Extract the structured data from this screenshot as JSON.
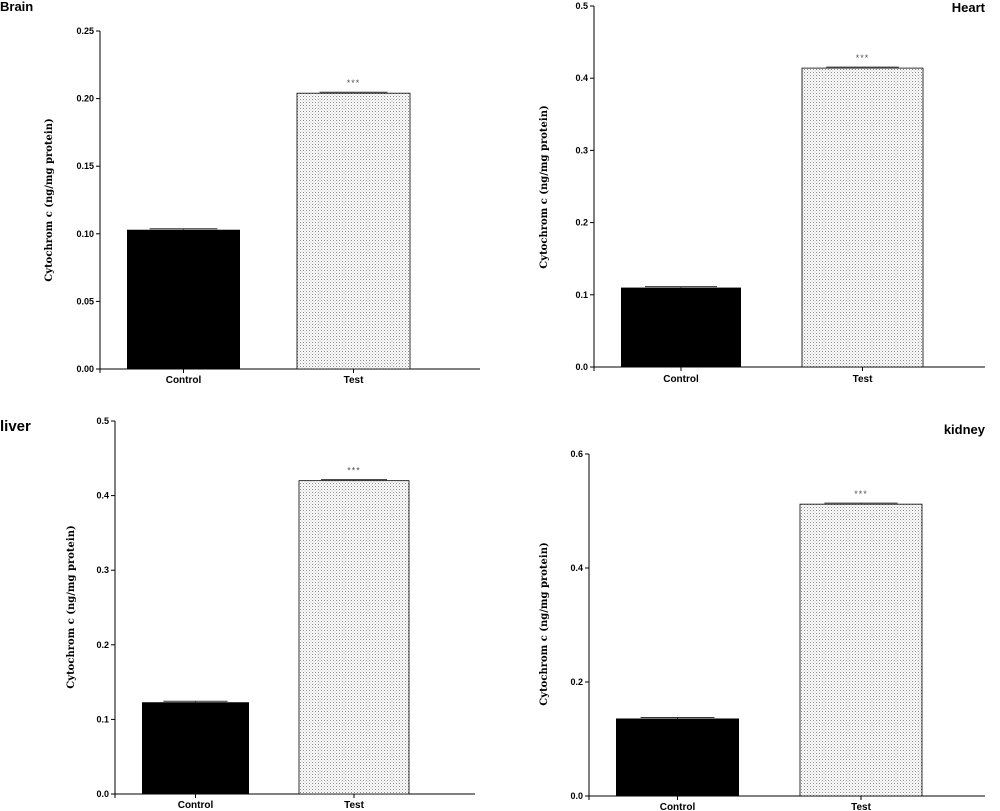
{
  "chart_data": [
    {
      "type": "bar",
      "title": "Brain",
      "ylabel": "Cytochrom c (ng/mg protein)",
      "categories": [
        "Control",
        "Test"
      ],
      "values": [
        0.103,
        0.204
      ],
      "ylim": [
        0,
        0.25
      ],
      "yticks": [
        "0.00",
        "0.05",
        "0.10",
        "0.15",
        "0.20",
        "0.25"
      ],
      "significance": [
        "",
        "***"
      ],
      "fills": [
        "solid-black",
        "dotted-gray"
      ],
      "grid": false
    },
    {
      "type": "bar",
      "title": "Heart",
      "ylabel": "Cytochrom c (ng/mg protein)",
      "categories": [
        "Control",
        "Test"
      ],
      "values": [
        0.11,
        0.414
      ],
      "ylim": [
        0,
        0.5
      ],
      "yticks": [
        "0.0",
        "0.1",
        "0.2",
        "0.3",
        "0.4",
        "0.5"
      ],
      "significance": [
        "",
        "***"
      ],
      "fills": [
        "solid-black",
        "dotted-gray"
      ],
      "grid": false
    },
    {
      "type": "bar",
      "title": "liver",
      "ylabel": "Cytochrom c (ng/mg protein)",
      "categories": [
        "Control",
        "Test"
      ],
      "values": [
        0.123,
        0.42
      ],
      "ylim": [
        0,
        0.5
      ],
      "yticks": [
        "0.0",
        "0.1",
        "0.2",
        "0.3",
        "0.4",
        "0.5"
      ],
      "significance": [
        "",
        "***"
      ],
      "fills": [
        "solid-black",
        "dotted-gray"
      ],
      "grid": false
    },
    {
      "type": "bar",
      "title": "kidney",
      "ylabel": "Cytochrom c (ng/mg protein)",
      "categories": [
        "Control",
        "Test"
      ],
      "values": [
        0.136,
        0.512
      ],
      "ylim": [
        0,
        0.6
      ],
      "yticks": [
        "0.0",
        "0.2",
        "0.4",
        "0.6"
      ],
      "significance": [
        "",
        "***"
      ],
      "fills": [
        "solid-black",
        "dotted-gray"
      ],
      "grid": false
    }
  ]
}
